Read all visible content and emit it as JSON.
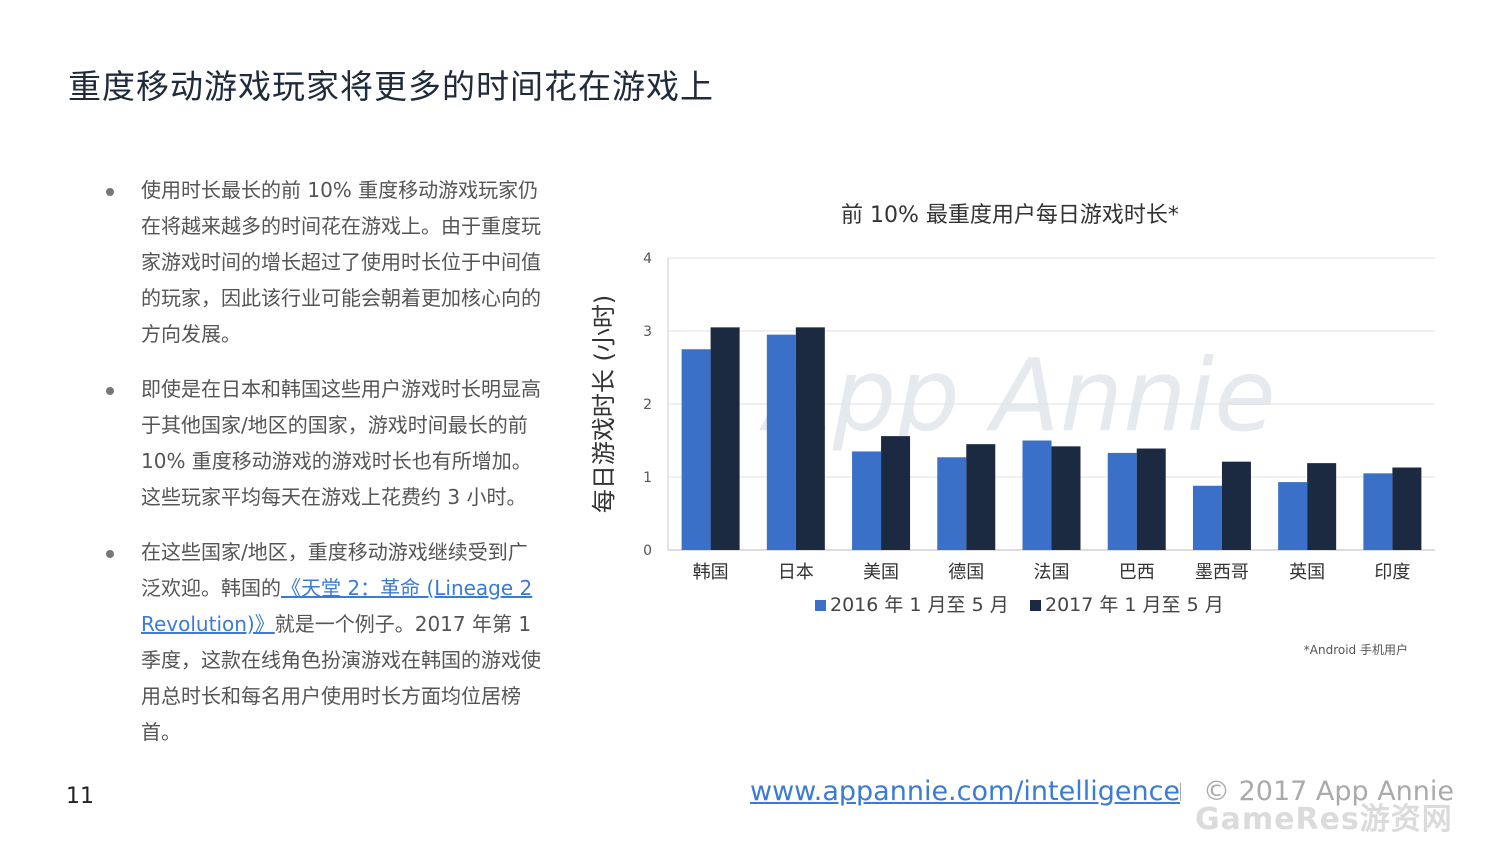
{
  "page": {
    "title": "重度移动游戏玩家将更多的时间花在游戏上",
    "page_number": "11",
    "footer_url": "www.appannie.com/intelligence",
    "footer_copyright": "© 2017 App Annie",
    "bottom_watermark": "GameRes游资网"
  },
  "bullets": [
    {
      "text": "使用时长最长的前 10% 重度移动游戏玩家仍在将越来越多的时间花在游戏上。由于重度玩家游戏时间的增长超过了使用时长位于中间值的玩家，因此该行业可能会朝着更加核心向的方向发展。"
    },
    {
      "text": "即使是在日本和韩国这些用户游戏时长明显高于其他国家/地区的国家，游戏时间最长的前 10% 重度移动游戏的游戏时长也有所增加。这些玩家平均每天在游戏上花费约 3 小时。"
    },
    {
      "before": "在这些国家/地区，重度移动游戏继续受到广泛欢迎。韩国的",
      "link": "《天堂 2：革命 (Lineage 2 Revolution)》",
      "after": "就是一个例子。2017 年第 1季度，这款在线角色扮演游戏在韩国的游戏使用总时长和每名用户使用时长方面均位居榜首。"
    }
  ],
  "chart_data": {
    "type": "bar",
    "title": "前 10% 最重度用户每日游戏时长*",
    "ylabel": "每日游戏时长 (小时)",
    "xlabel": "",
    "ylim": [
      0,
      4
    ],
    "yticks": [
      0,
      1,
      2,
      3,
      4
    ],
    "categories": [
      "韩国",
      "日本",
      "美国",
      "德国",
      "法国",
      "巴西",
      "墨西哥",
      "英国",
      "印度"
    ],
    "series": [
      {
        "name": "2016 年 1 月至 5 月",
        "color": "#3a70c7",
        "values": [
          2.75,
          2.95,
          1.35,
          1.27,
          1.5,
          1.33,
          0.88,
          0.93,
          1.05
        ]
      },
      {
        "name": "2017 年 1 月至 5 月",
        "color": "#1b2a41",
        "values": [
          3.05,
          3.05,
          1.56,
          1.45,
          1.42,
          1.39,
          1.21,
          1.19,
          1.13
        ]
      }
    ],
    "legend_position": "bottom",
    "grid": true,
    "footnote": "*Android 手机用户",
    "watermark": "App Annie"
  }
}
